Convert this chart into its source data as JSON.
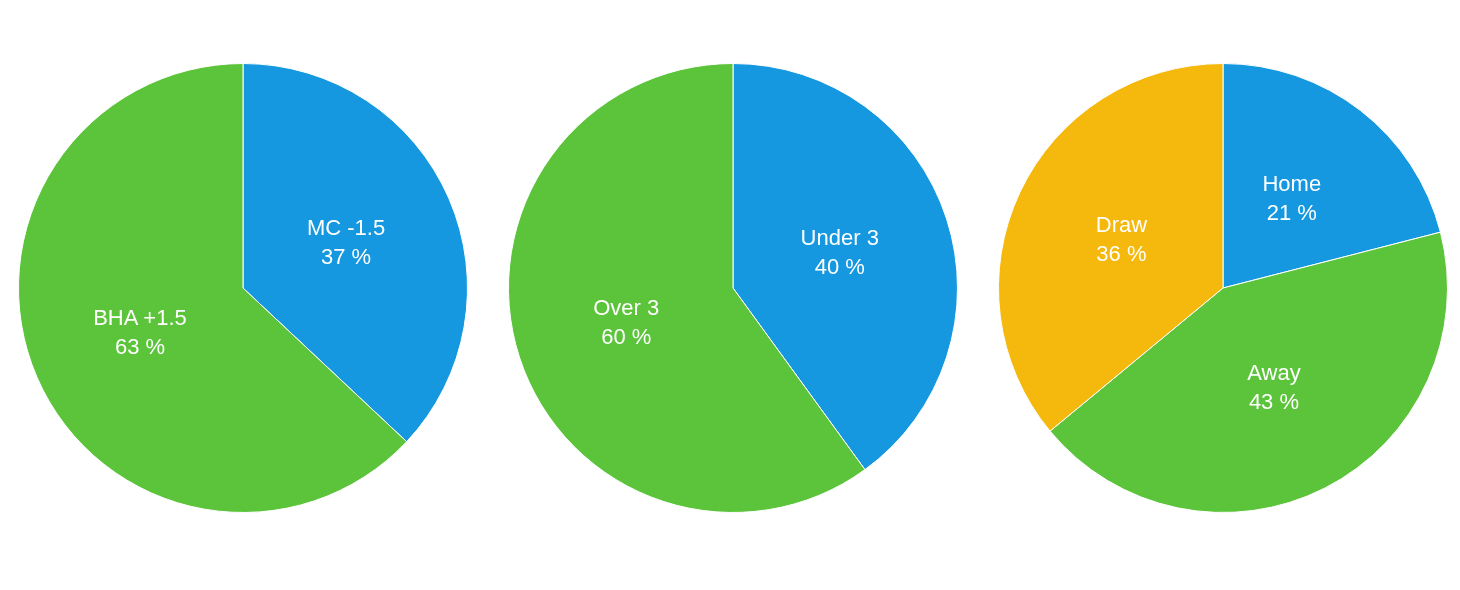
{
  "chart_data": [
    {
      "type": "pie",
      "categories": [
        "MC -1.5",
        "BHA +1.5"
      ],
      "values": [
        37,
        63
      ],
      "colors": [
        "#1598e0",
        "#5cc43a"
      ],
      "value_labels": [
        "37 %",
        "63 %"
      ],
      "legend": false
    },
    {
      "type": "pie",
      "categories": [
        "Under 3",
        "Over 3"
      ],
      "values": [
        40,
        60
      ],
      "colors": [
        "#1598e0",
        "#5cc43a"
      ],
      "value_labels": [
        "40 %",
        "60 %"
      ],
      "legend": false
    },
    {
      "type": "pie",
      "categories": [
        "Home",
        "Away",
        "Draw"
      ],
      "values": [
        21,
        43,
        36
      ],
      "colors": [
        "#1598e0",
        "#5cc43a",
        "#f5b80c"
      ],
      "value_labels": [
        "21 %",
        "43 %",
        "36 %"
      ],
      "legend": false
    }
  ]
}
